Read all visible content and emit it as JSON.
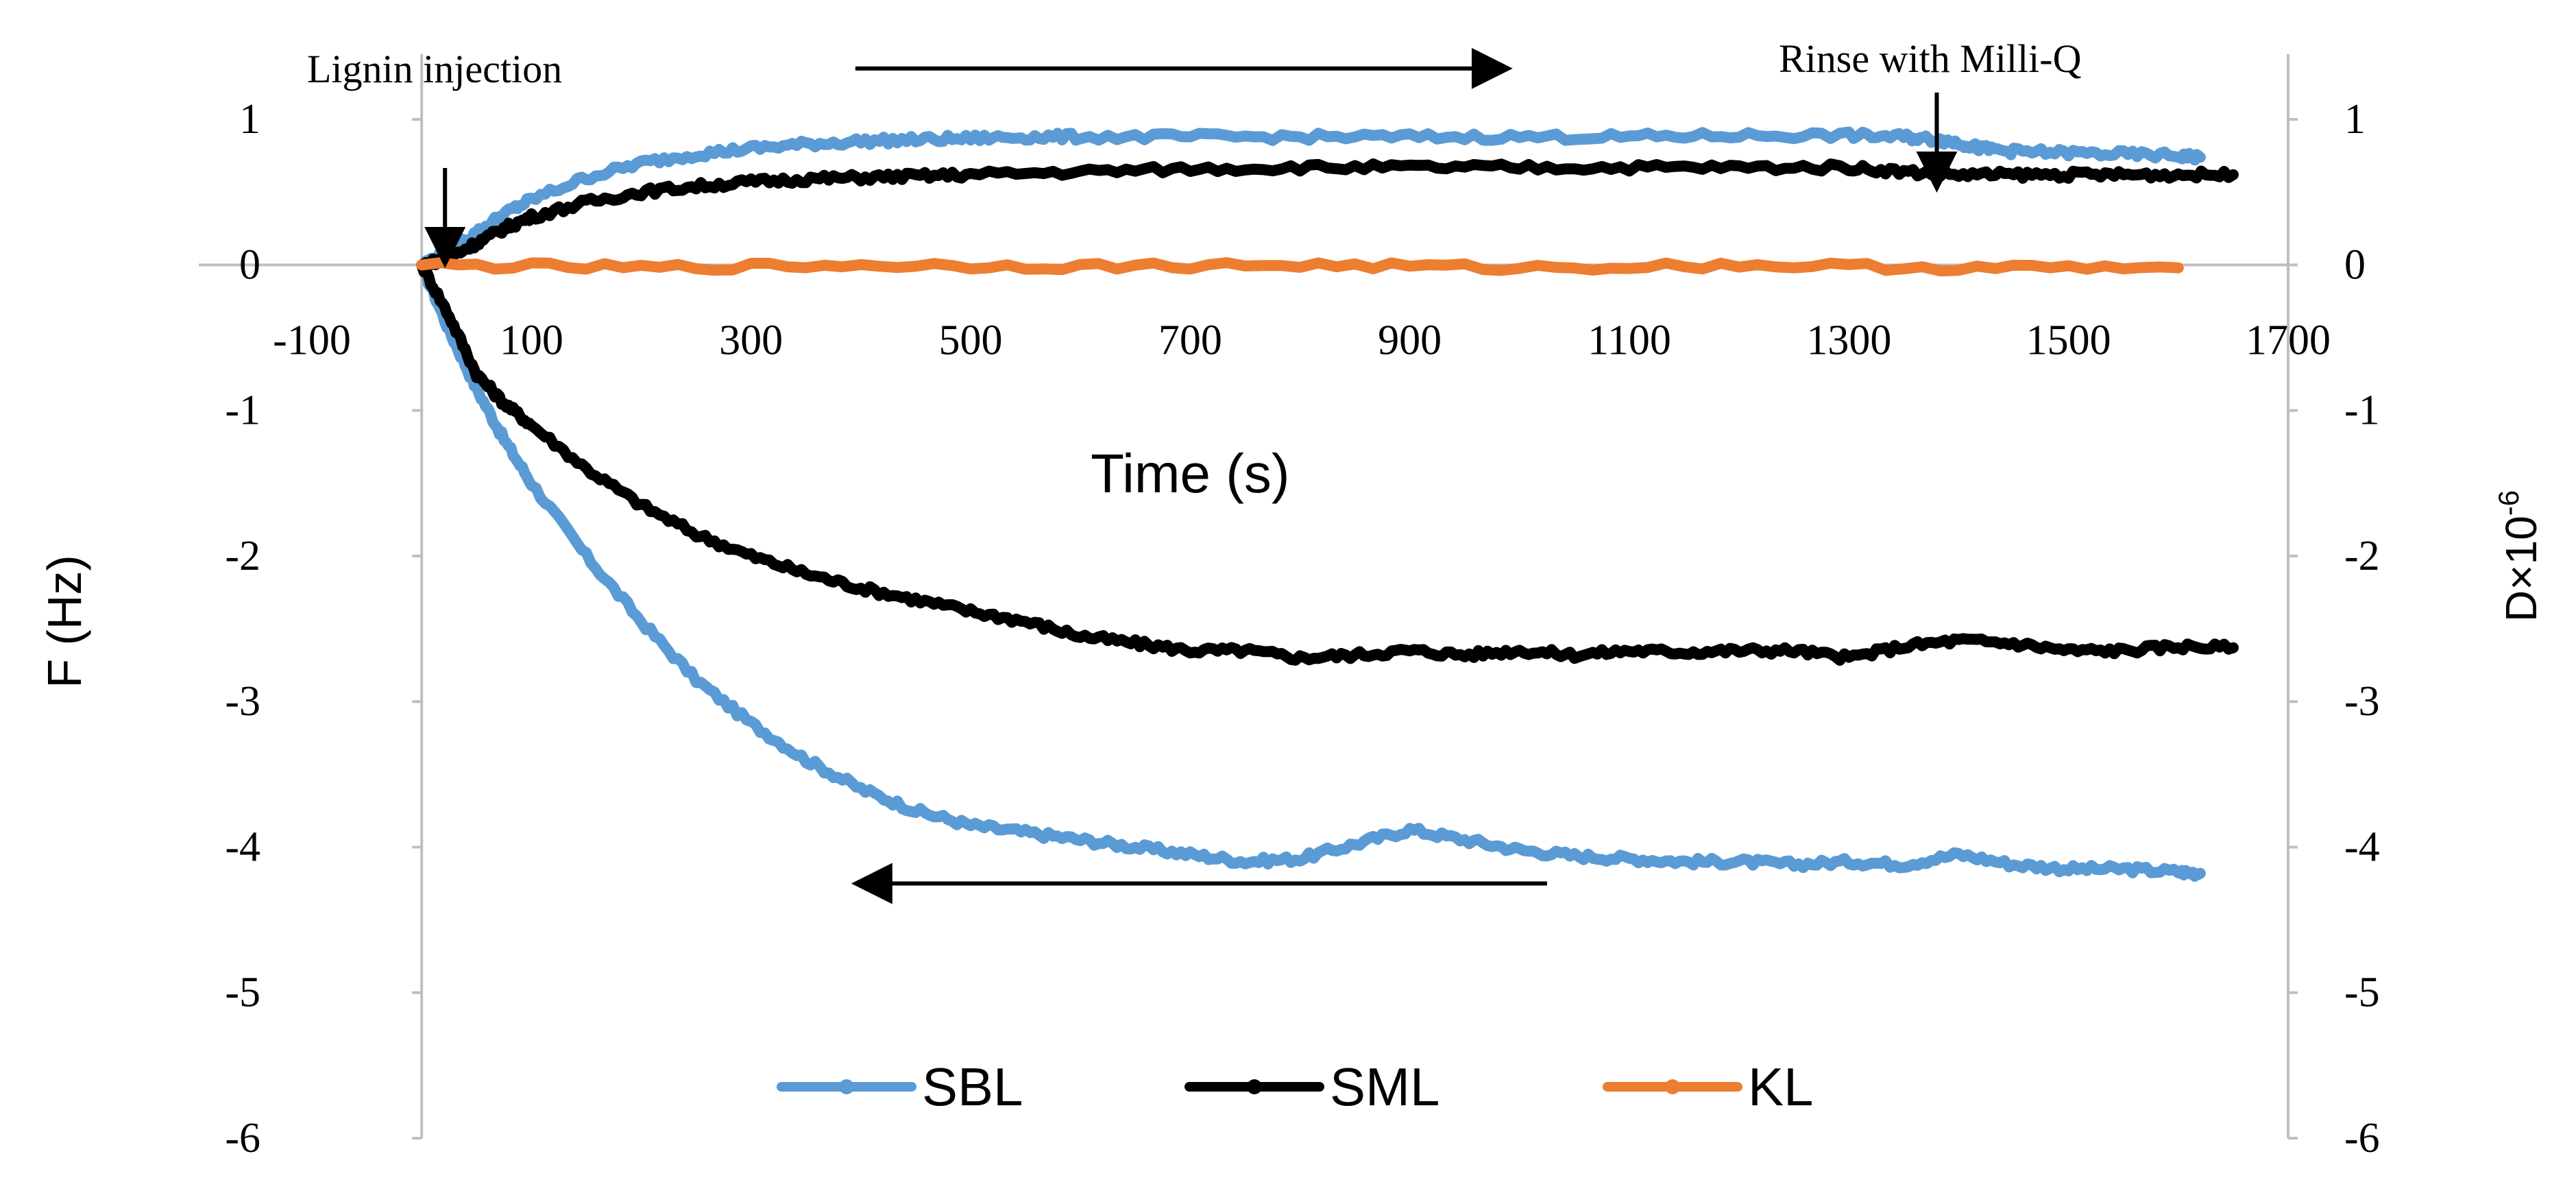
{
  "chart_data": {
    "type": "line",
    "title": "",
    "xlabel": "Time (s)",
    "ylabel_left": "F (Hz)",
    "ylabel_right_base": "D×10",
    "ylabel_right_exp": "-6",
    "xlim": [
      -100,
      1700
    ],
    "ylim": [
      -6,
      1.5
    ],
    "x_ticks": [
      "-100",
      "100",
      "300",
      "500",
      "700",
      "900",
      "1100",
      "1300",
      "1500",
      "1700"
    ],
    "y_ticks": [
      "1",
      "0",
      "-1",
      "-2",
      "-3",
      "-4",
      "-5",
      "-6"
    ],
    "y_ticks_right": [
      "1",
      "0",
      "-1",
      "-2",
      "-3",
      "-4",
      "-5",
      "-6"
    ],
    "colors": {
      "SBL": "#5b9bd5",
      "SML": "#000000",
      "KL": "#ed7d31",
      "axis": "#bfbfbf",
      "annotation": "#000000"
    },
    "series": [
      {
        "name": "SBL",
        "measure": "F",
        "color": "#5b9bd5",
        "x": [
          0,
          25,
          50,
          75,
          100,
          150,
          200,
          250,
          300,
          350,
          400,
          450,
          500,
          550,
          600,
          650,
          700,
          750,
          800,
          850,
          900,
          950,
          1000,
          1050,
          1100,
          1150,
          1200,
          1250,
          1300,
          1350,
          1400,
          1450,
          1500,
          1550,
          1600,
          1620
        ],
        "values": [
          0,
          -0.45,
          -0.85,
          -1.2,
          -1.5,
          -2.0,
          -2.45,
          -2.85,
          -3.15,
          -3.4,
          -3.6,
          -3.75,
          -3.85,
          -3.9,
          -3.95,
          -4.0,
          -4.05,
          -4.1,
          -4.08,
          -3.98,
          -3.88,
          -3.95,
          -4.02,
          -4.06,
          -4.08,
          -4.1,
          -4.1,
          -4.12,
          -4.1,
          -4.12,
          -4.05,
          -4.12,
          -4.15,
          -4.15,
          -4.17,
          -4.18
        ]
      },
      {
        "name": "SML",
        "measure": "F",
        "color": "#000000",
        "x": [
          0,
          25,
          50,
          75,
          100,
          150,
          200,
          250,
          300,
          350,
          400,
          450,
          500,
          550,
          600,
          650,
          700,
          750,
          800,
          850,
          900,
          950,
          1000,
          1050,
          1100,
          1150,
          1200,
          1250,
          1300,
          1350,
          1400,
          1450,
          1500,
          1550,
          1600,
          1650
        ],
        "values": [
          0,
          -0.35,
          -0.75,
          -0.95,
          -1.1,
          -1.4,
          -1.65,
          -1.85,
          -2.0,
          -2.12,
          -2.22,
          -2.3,
          -2.38,
          -2.45,
          -2.55,
          -2.6,
          -2.65,
          -2.65,
          -2.7,
          -2.68,
          -2.65,
          -2.68,
          -2.65,
          -2.68,
          -2.65,
          -2.66,
          -2.65,
          -2.65,
          -2.7,
          -2.62,
          -2.58,
          -2.6,
          -2.65,
          -2.65,
          -2.62,
          -2.63
        ]
      },
      {
        "name": "SBL",
        "measure": "D",
        "color": "#5b9bd5",
        "x": [
          0,
          25,
          50,
          75,
          100,
          150,
          200,
          250,
          300,
          350,
          400,
          450,
          500,
          550,
          600,
          700,
          800,
          900,
          1000,
          1100,
          1200,
          1300,
          1350,
          1380,
          1400,
          1420,
          1450,
          1500,
          1550,
          1600,
          1620
        ],
        "values": [
          0,
          0.1,
          0.22,
          0.35,
          0.45,
          0.6,
          0.7,
          0.76,
          0.8,
          0.83,
          0.85,
          0.86,
          0.87,
          0.88,
          0.88,
          0.88,
          0.88,
          0.88,
          0.88,
          0.88,
          0.89,
          0.89,
          0.88,
          0.86,
          0.84,
          0.8,
          0.78,
          0.77,
          0.76,
          0.75,
          0.74
        ]
      },
      {
        "name": "SML",
        "measure": "D",
        "color": "#000000",
        "x": [
          0,
          25,
          50,
          75,
          100,
          150,
          200,
          250,
          300,
          350,
          400,
          450,
          500,
          600,
          700,
          800,
          900,
          1000,
          1100,
          1200,
          1300,
          1350,
          1400,
          1450,
          1500,
          1550,
          1600,
          1650
        ],
        "values": [
          0,
          0.05,
          0.15,
          0.25,
          0.33,
          0.43,
          0.5,
          0.54,
          0.57,
          0.59,
          0.6,
          0.61,
          0.62,
          0.64,
          0.66,
          0.67,
          0.67,
          0.67,
          0.67,
          0.67,
          0.67,
          0.64,
          0.62,
          0.62,
          0.62,
          0.62,
          0.62,
          0.62
        ]
      },
      {
        "name": "KL",
        "measure": "D",
        "color": "#ed7d31",
        "x": [
          0,
          200,
          400,
          600,
          800,
          1000,
          1200,
          1400,
          1600
        ],
        "values": [
          0,
          -0.02,
          0,
          -0.01,
          0,
          -0.02,
          0,
          -0.02,
          -0.02
        ]
      }
    ],
    "legend": {
      "position": "bottom",
      "entries": [
        {
          "label": "SBL",
          "color": "#5b9bd5"
        },
        {
          "label": "SML",
          "color": "#000000"
        },
        {
          "label": "KL",
          "color": "#ed7d31"
        }
      ]
    },
    "annotations": {
      "injection_label": "Lignin injection",
      "rinse_label": "Rinse with Milli-Q",
      "injection_time": 10,
      "rinse_time": 1380,
      "arrow_right_range": [
        395,
        990
      ],
      "arrow_right_level": 1.35,
      "arrow_left_range": [
        1025,
        395
      ],
      "arrow_left_level": -4.25
    }
  }
}
